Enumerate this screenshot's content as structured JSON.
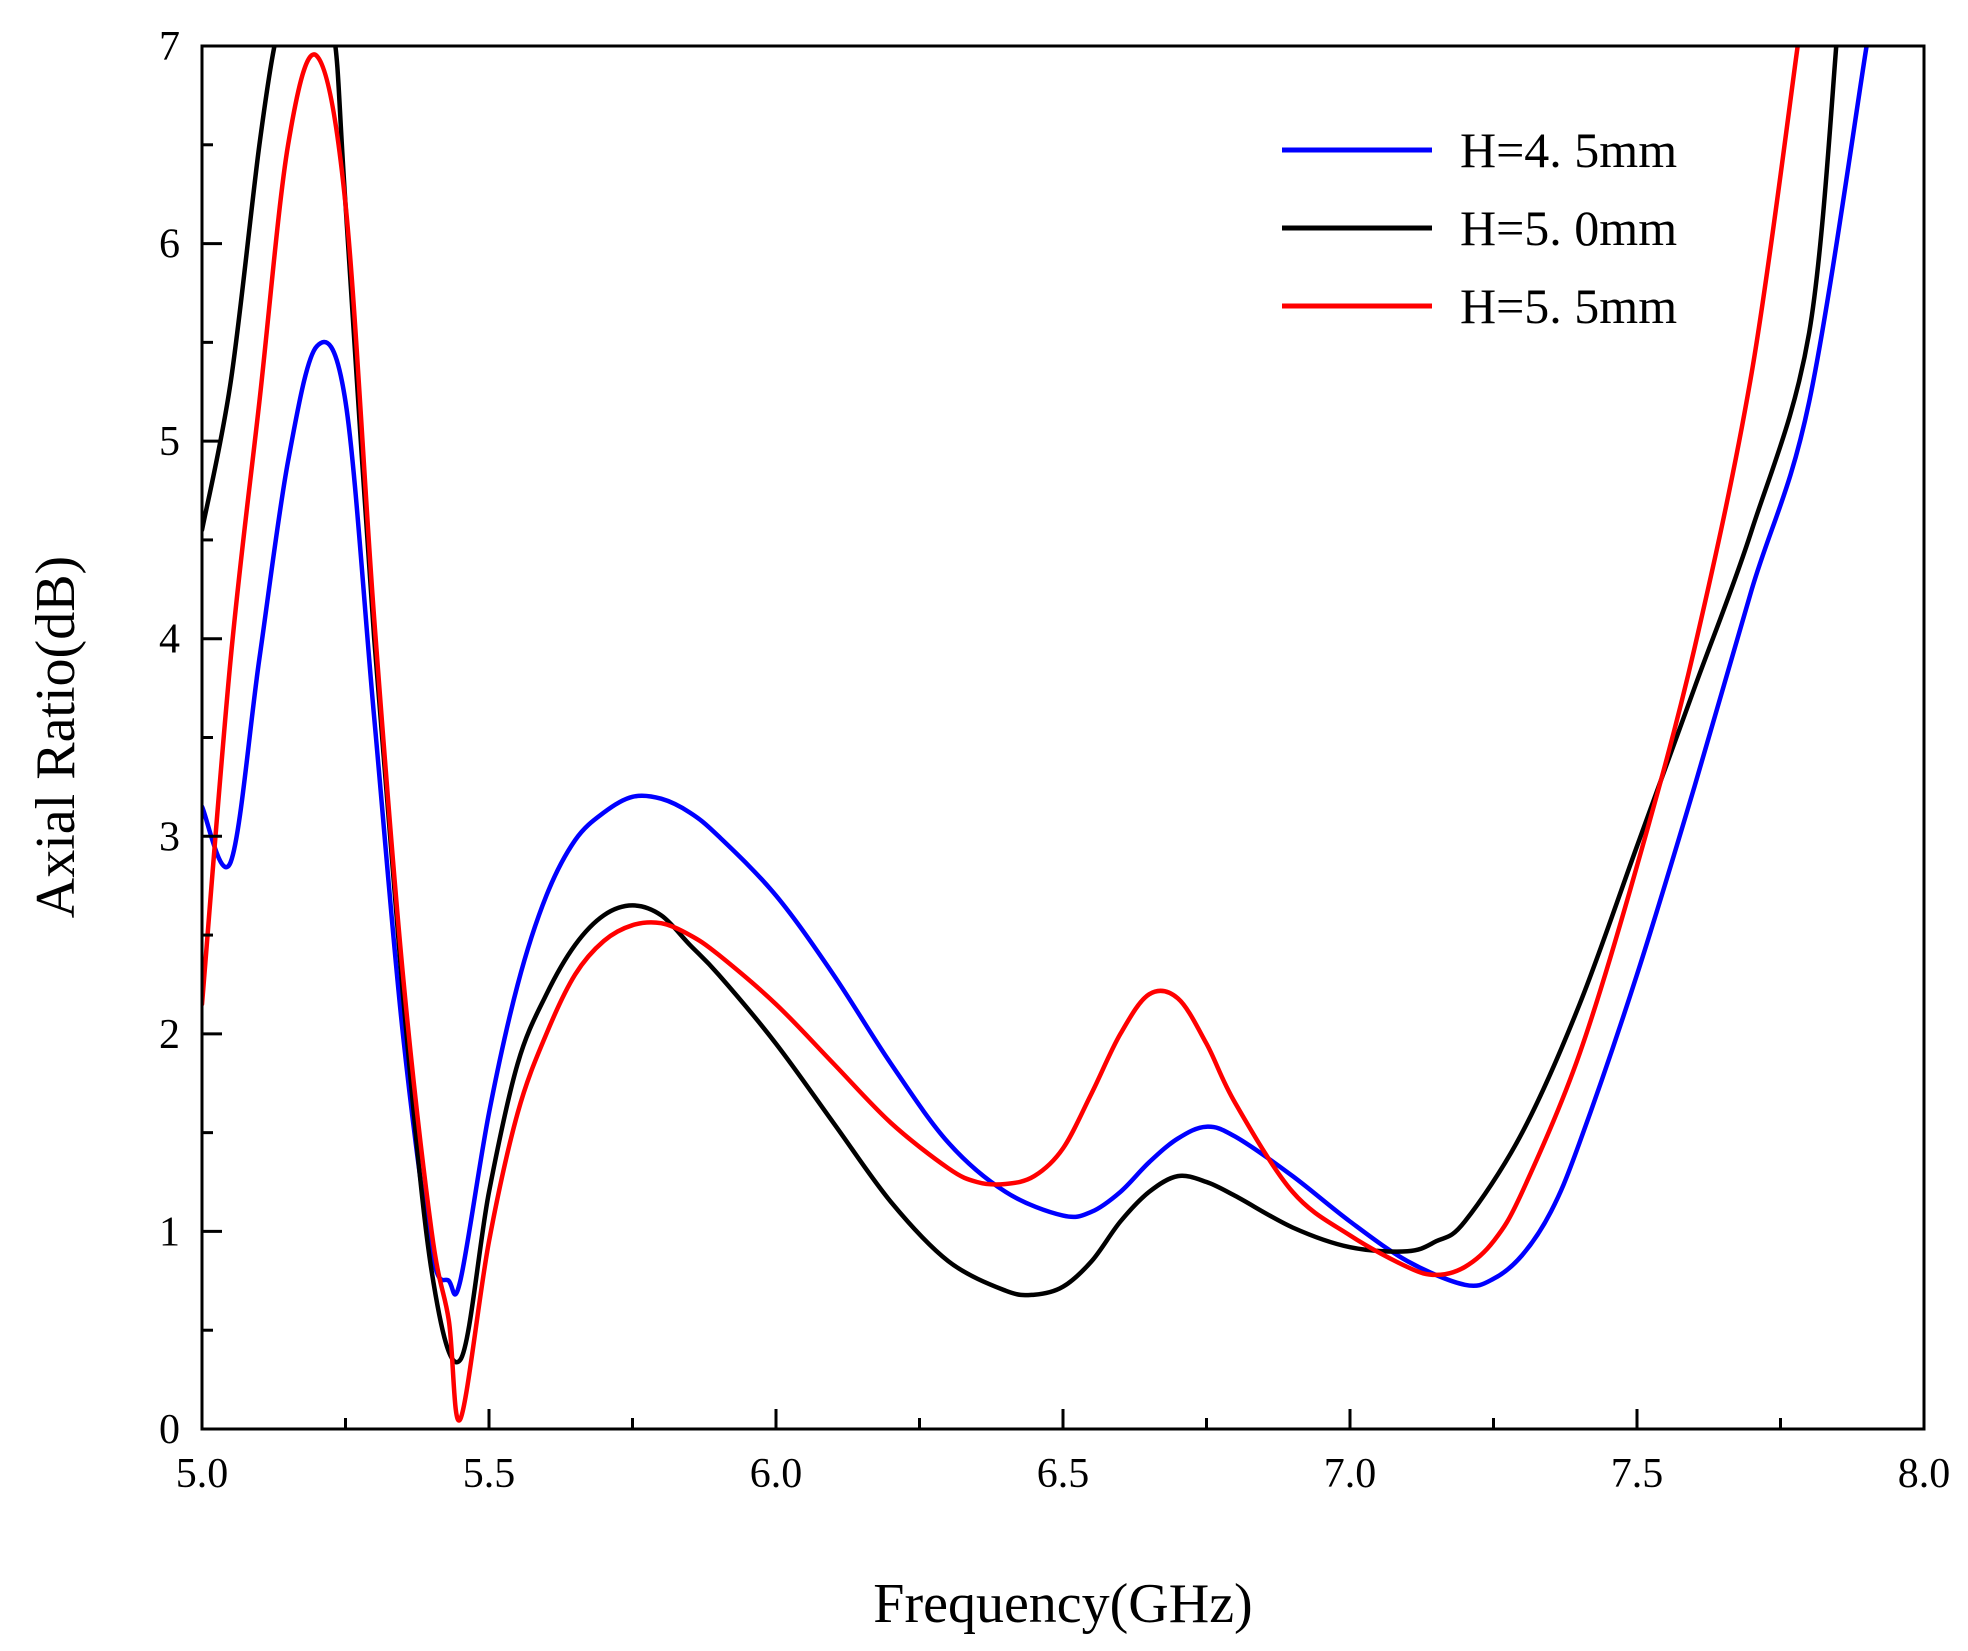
{
  "chart_data": {
    "type": "line",
    "title": "",
    "xlabel": "Frequency(GHz)",
    "ylabel": "Axial Ratio(dB)",
    "xlim": [
      5.0,
      8.0
    ],
    "ylim": [
      0,
      7
    ],
    "x_ticks": [
      "5.0",
      "5.5",
      "6.0",
      "6.5",
      "7.0",
      "7.5",
      "8.0"
    ],
    "y_ticks": [
      "0",
      "1",
      "2",
      "3",
      "4",
      "5",
      "6",
      "7"
    ],
    "grid": false,
    "legend_position": "top-right",
    "series": [
      {
        "name": "H=4. 5mm",
        "color": "#0000ff",
        "x": [
          5.0,
          5.05,
          5.1,
          5.15,
          5.2,
          5.25,
          5.3,
          5.35,
          5.4,
          5.43,
          5.45,
          5.5,
          5.55,
          5.6,
          5.65,
          5.7,
          5.75,
          5.8,
          5.85,
          5.9,
          6.0,
          6.1,
          6.2,
          6.3,
          6.4,
          6.5,
          6.55,
          6.6,
          6.65,
          6.7,
          6.75,
          6.8,
          6.9,
          7.0,
          7.1,
          7.2,
          7.25,
          7.3,
          7.35,
          7.4,
          7.5,
          7.6,
          7.7,
          7.8,
          7.9
        ],
        "values": [
          3.15,
          2.87,
          3.9,
          4.9,
          5.48,
          5.2,
          3.6,
          2.0,
          0.9,
          0.75,
          0.75,
          1.6,
          2.25,
          2.7,
          2.98,
          3.12,
          3.2,
          3.19,
          3.12,
          3.0,
          2.7,
          2.3,
          1.85,
          1.45,
          1.2,
          1.08,
          1.1,
          1.2,
          1.35,
          1.47,
          1.53,
          1.48,
          1.28,
          1.05,
          0.85,
          0.73,
          0.76,
          0.88,
          1.1,
          1.45,
          2.3,
          3.25,
          4.25,
          5.2,
          7.0
        ]
      },
      {
        "name": "H=5. 0mm",
        "color": "#000000",
        "x": [
          5.0,
          5.05,
          5.1,
          5.13,
          5.15,
          5.2,
          5.23,
          5.25,
          5.3,
          5.35,
          5.4,
          5.45,
          5.5,
          5.55,
          5.6,
          5.65,
          5.7,
          5.75,
          5.8,
          5.85,
          5.9,
          6.0,
          6.1,
          6.2,
          6.3,
          6.4,
          6.45,
          6.5,
          6.55,
          6.6,
          6.65,
          6.7,
          6.75,
          6.8,
          6.9,
          7.0,
          7.1,
          7.15,
          7.2,
          7.3,
          7.4,
          7.5,
          7.6,
          7.7,
          7.8,
          7.85
        ],
        "values": [
          4.55,
          5.3,
          6.5,
          7.05,
          7.1,
          7.1,
          7.05,
          6.2,
          4.0,
          2.2,
          0.8,
          0.35,
          1.2,
          1.85,
          2.2,
          2.45,
          2.6,
          2.65,
          2.6,
          2.45,
          2.3,
          1.95,
          1.55,
          1.15,
          0.85,
          0.7,
          0.68,
          0.72,
          0.85,
          1.05,
          1.2,
          1.28,
          1.25,
          1.18,
          1.02,
          0.92,
          0.9,
          0.95,
          1.05,
          1.5,
          2.15,
          2.95,
          3.75,
          4.55,
          5.55,
          7.1
        ]
      },
      {
        "name": "H=5. 5mm",
        "color": "#ff0000",
        "x": [
          5.0,
          5.05,
          5.1,
          5.15,
          5.2,
          5.25,
          5.3,
          5.35,
          5.4,
          5.43,
          5.45,
          5.5,
          5.55,
          5.6,
          5.65,
          5.7,
          5.75,
          5.8,
          5.85,
          5.9,
          6.0,
          6.1,
          6.2,
          6.3,
          6.35,
          6.4,
          6.45,
          6.5,
          6.55,
          6.6,
          6.65,
          6.7,
          6.75,
          6.8,
          6.9,
          7.0,
          7.1,
          7.15,
          7.2,
          7.25,
          7.3,
          7.4,
          7.5,
          7.6,
          7.7,
          7.78
        ],
        "values": [
          2.15,
          3.9,
          5.2,
          6.5,
          6.95,
          6.2,
          4.1,
          2.3,
          1.0,
          0.55,
          0.05,
          0.95,
          1.6,
          2.0,
          2.3,
          2.47,
          2.55,
          2.56,
          2.5,
          2.4,
          2.15,
          1.85,
          1.55,
          1.32,
          1.25,
          1.24,
          1.28,
          1.42,
          1.7,
          2.0,
          2.2,
          2.18,
          1.95,
          1.65,
          1.2,
          0.98,
          0.82,
          0.78,
          0.82,
          0.95,
          1.2,
          1.9,
          2.85,
          3.95,
          5.35,
          7.0
        ]
      }
    ]
  }
}
